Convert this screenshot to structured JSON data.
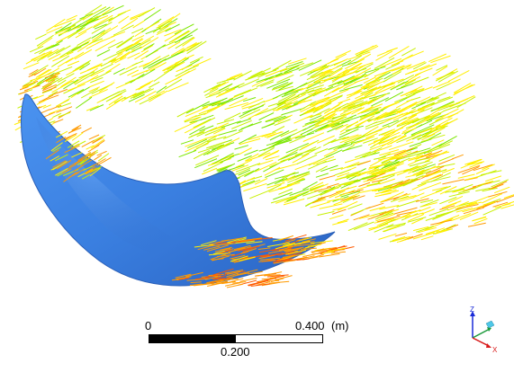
{
  "scale": {
    "start_label": "0",
    "end_label": "0.400",
    "unit_label": "(m)",
    "mid_label": "0.200"
  },
  "triad": {
    "z_label": "Z",
    "x_label": "X"
  },
  "colors": {
    "surface": "#3a7fe0",
    "vector_red": "#ff5a00",
    "vector_orange": "#ff9a00",
    "vector_yellow": "#ffee00",
    "vector_yellowgreen": "#c8f000",
    "vector_green": "#7ae600"
  }
}
